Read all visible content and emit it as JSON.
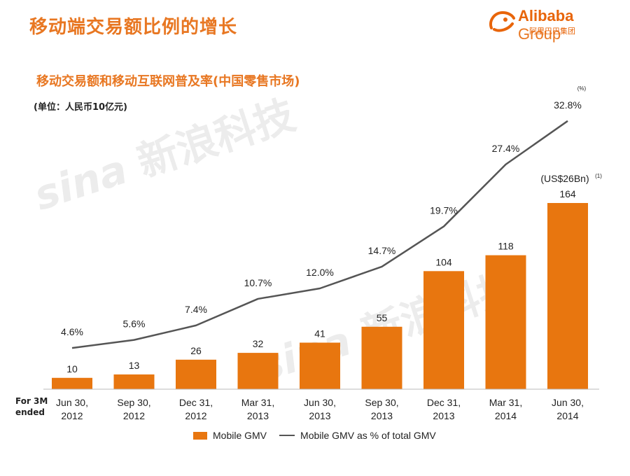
{
  "slide": {
    "title": "移动端交易额比例的增长",
    "subtitle": "移动交易额和移动互联网普及率(中国零售市场)",
    "unit": "(单位：人民币10亿元)",
    "period_label": "For 3M ended"
  },
  "logo": {
    "en_main": "Alibaba",
    "en_suffix": " Group",
    "cn": "阿里巴巴集团"
  },
  "watermark": {
    "brand": "sina",
    "cn": "新浪科技"
  },
  "colors": {
    "bar": "#e8760f",
    "line": "#555555",
    "title": "#e87722"
  },
  "chart_data": {
    "type": "bar",
    "categories": [
      [
        "Jun 30,",
        "2012"
      ],
      [
        "Sep 30,",
        "2012"
      ],
      [
        "Dec 31,",
        "2012"
      ],
      [
        "Mar 31,",
        "2013"
      ],
      [
        "Jun 30,",
        "2013"
      ],
      [
        "Sep 30,",
        "2013"
      ],
      [
        "Dec 31,",
        "2013"
      ],
      [
        "Mar 31,",
        "2014"
      ],
      [
        "Jun 30,",
        "2014"
      ]
    ],
    "series": [
      {
        "name": "Mobile GMV",
        "type": "bar",
        "values": [
          10,
          13,
          26,
          32,
          41,
          55,
          104,
          118,
          164
        ],
        "labels": [
          "10",
          "13",
          "26",
          "32",
          "41",
          "55",
          "104",
          "118",
          "164"
        ]
      },
      {
        "name": "Mobile GMV as % of total GMV",
        "type": "line",
        "values": [
          4.6,
          5.6,
          7.4,
          10.7,
          12.0,
          14.7,
          19.7,
          27.4,
          32.8
        ],
        "labels": [
          "4.6%",
          "5.6%",
          "7.4%",
          "10.7%",
          "12.0%",
          "14.7%",
          "19.7%",
          "27.4%",
          "32.8%"
        ]
      }
    ],
    "annotations": {
      "last_bar_note": "(US$26Bn)",
      "last_bar_footnote": "(1)",
      "percent_unit": "(%)"
    },
    "bar_ylim": [
      0,
      220
    ],
    "line_ylim": [
      0,
      40
    ]
  }
}
